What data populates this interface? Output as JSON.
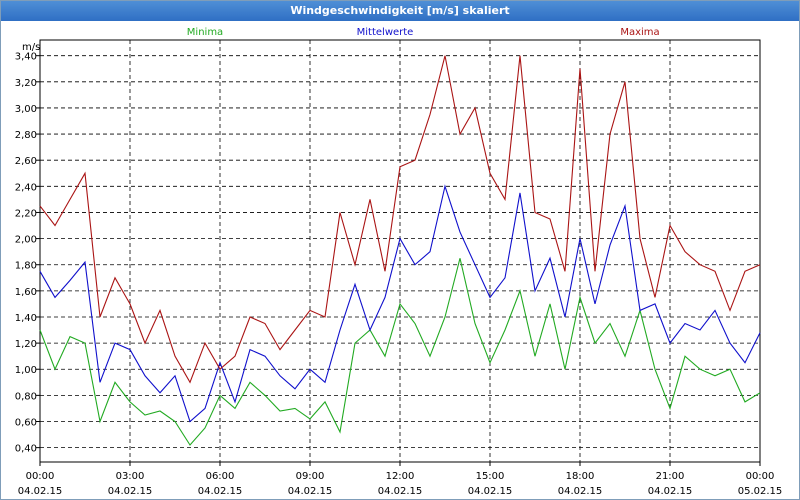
{
  "window": {
    "title": "Windgeschwindigkeit [m/s] skaliert"
  },
  "colors": {
    "min": "#22aa22",
    "mean": "#1010cc",
    "max": "#aa1414"
  },
  "chart_data": {
    "type": "line",
    "title": "Windgeschwindigkeit [m/s] skaliert",
    "ylabel": "m/s",
    "ylim": [
      0.29,
      3.52
    ],
    "grid": true,
    "legend_position": "top",
    "x_range": [
      0,
      24
    ],
    "x_ticks": [
      {
        "time": "00:00",
        "date": "04.02.15"
      },
      {
        "time": "03:00",
        "date": "04.02.15"
      },
      {
        "time": "06:00",
        "date": "04.02.15"
      },
      {
        "time": "09:00",
        "date": "04.02.15"
      },
      {
        "time": "12:00",
        "date": "04.02.15"
      },
      {
        "time": "15:00",
        "date": "04.02.15"
      },
      {
        "time": "18:00",
        "date": "04.02.15"
      },
      {
        "time": "21:00",
        "date": "04.02.15"
      },
      {
        "time": "00:00",
        "date": "05.02.15"
      }
    ],
    "y_ticks": [
      "0,40",
      "0,60",
      "0,80",
      "1,00",
      "1,20",
      "1,40",
      "1,60",
      "1,80",
      "2,00",
      "2,20",
      "2,40",
      "2,60",
      "2,80",
      "3,00",
      "3,20",
      "3,40"
    ],
    "series": [
      {
        "name": "Minima",
        "x": [
          0,
          0.5,
          1,
          1.5,
          2,
          2.5,
          3,
          3.5,
          4,
          4.5,
          5,
          5.5,
          6,
          6.5,
          7,
          7.5,
          8,
          8.5,
          9,
          9.5,
          10,
          10.5,
          11,
          11.5,
          12,
          12.5,
          13,
          13.5,
          14,
          14.5,
          15,
          15.5,
          16,
          16.5,
          17,
          17.5,
          18,
          18.5,
          19,
          19.5,
          20,
          20.5,
          21,
          21.5,
          22,
          22.5,
          23,
          23.5,
          24
        ],
        "values": [
          1.3,
          1.0,
          1.25,
          1.2,
          0.6,
          0.9,
          0.75,
          0.65,
          0.68,
          0.6,
          0.42,
          0.55,
          0.8,
          0.7,
          0.9,
          0.8,
          0.68,
          0.7,
          0.62,
          0.75,
          0.52,
          1.2,
          1.3,
          1.1,
          1.5,
          1.35,
          1.1,
          1.4,
          1.85,
          1.35,
          1.05,
          1.3,
          1.6,
          1.1,
          1.5,
          1.0,
          1.55,
          1.2,
          1.35,
          1.1,
          1.45,
          1.0,
          0.7,
          1.1,
          1.0,
          0.95,
          1.0,
          0.75,
          0.82
        ]
      },
      {
        "name": "Mittelwerte",
        "x": [
          0,
          0.5,
          1,
          1.5,
          2,
          2.5,
          3,
          3.5,
          4,
          4.5,
          5,
          5.5,
          6,
          6.5,
          7,
          7.5,
          8,
          8.5,
          9,
          9.5,
          10,
          10.5,
          11,
          11.5,
          12,
          12.5,
          13,
          13.5,
          14,
          14.5,
          15,
          15.5,
          16,
          16.5,
          17,
          17.5,
          18,
          18.5,
          19,
          19.5,
          20,
          20.5,
          21,
          21.5,
          22,
          22.5,
          23,
          23.5,
          24
        ],
        "values": [
          1.75,
          1.55,
          1.68,
          1.82,
          0.9,
          1.2,
          1.15,
          0.95,
          0.82,
          0.95,
          0.6,
          0.7,
          1.05,
          0.75,
          1.15,
          1.1,
          0.95,
          0.85,
          1.0,
          0.9,
          1.3,
          1.65,
          1.3,
          1.55,
          2.0,
          1.8,
          1.9,
          2.4,
          2.05,
          1.8,
          1.55,
          1.7,
          2.35,
          1.6,
          1.85,
          1.4,
          2.0,
          1.5,
          1.95,
          2.25,
          1.45,
          1.5,
          1.2,
          1.35,
          1.3,
          1.45,
          1.2,
          1.05,
          1.28
        ]
      },
      {
        "name": "Maxima",
        "x": [
          0,
          0.5,
          1,
          1.5,
          2,
          2.5,
          3,
          3.5,
          4,
          4.5,
          5,
          5.5,
          6,
          6.5,
          7,
          7.5,
          8,
          8.5,
          9,
          9.5,
          10,
          10.5,
          11,
          11.5,
          12,
          12.5,
          13,
          13.5,
          14,
          14.5,
          15,
          15.5,
          16,
          16.5,
          17,
          17.5,
          18,
          18.5,
          19,
          19.5,
          20,
          20.5,
          21,
          21.5,
          22,
          22.5,
          23,
          23.5,
          24
        ],
        "values": [
          2.25,
          2.1,
          2.3,
          2.5,
          1.4,
          1.7,
          1.5,
          1.2,
          1.45,
          1.1,
          0.9,
          1.2,
          1.0,
          1.1,
          1.4,
          1.35,
          1.15,
          1.3,
          1.45,
          1.4,
          2.2,
          1.8,
          2.3,
          1.75,
          2.55,
          2.6,
          2.95,
          3.4,
          2.8,
          3.0,
          2.5,
          2.3,
          3.4,
          2.2,
          2.15,
          1.75,
          3.3,
          1.75,
          2.8,
          3.2,
          2.0,
          1.55,
          2.1,
          1.9,
          1.8,
          1.75,
          1.45,
          1.75,
          1.8
        ]
      }
    ]
  }
}
